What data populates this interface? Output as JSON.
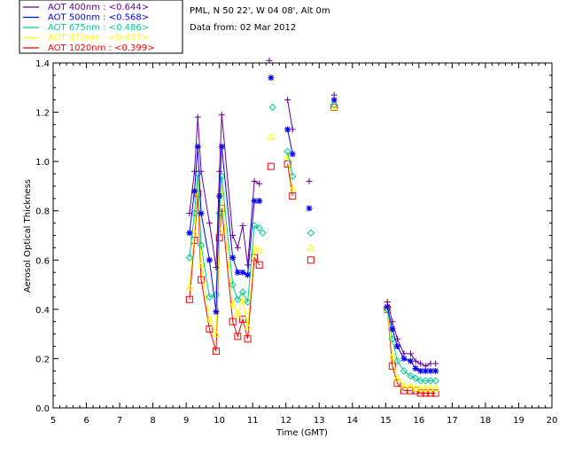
{
  "chart_data": {
    "type": "scatter",
    "header": {
      "station": "PML, N 50 22', W 04 08', Alt 0m",
      "date": "Data from: 02 Mar 2012"
    },
    "xlabel": "Time (GMT)",
    "ylabel": "Aerosol Optical Thickness",
    "xlim": [
      5,
      20
    ],
    "ylim": [
      0,
      1.4
    ],
    "xticks": [
      "5",
      "6",
      "7",
      "8",
      "9",
      "10",
      "11",
      "12",
      "13",
      "14",
      "15",
      "16",
      "17",
      "18",
      "19",
      "20"
    ],
    "yticks": [
      "0.0",
      "0.2",
      "0.4",
      "0.6",
      "0.8",
      "1.0",
      "1.2",
      "1.4"
    ],
    "series": [
      {
        "name": "AOT 400nm",
        "legend": "AOT  400nm : <0.644>",
        "color": "#660099",
        "marker": "plus",
        "segments": [
          [
            [
              9.1,
              0.79
            ],
            [
              9.25,
              0.96
            ],
            [
              9.35,
              1.18
            ],
            [
              9.45,
              0.96
            ],
            [
              9.7,
              0.75
            ],
            [
              9.9,
              0.57
            ],
            [
              10.0,
              0.96
            ],
            [
              10.07,
              1.19
            ],
            [
              10.4,
              0.7
            ],
            [
              10.55,
              0.65
            ],
            [
              10.7,
              0.74
            ],
            [
              10.85,
              0.58
            ],
            [
              11.05,
              0.92
            ],
            [
              11.2,
              0.91
            ]
          ],
          [
            [
              12.05,
              1.25
            ],
            [
              12.2,
              1.13
            ]
          ],
          [
            [
              15.05,
              0.43
            ],
            [
              15.2,
              0.35
            ],
            [
              15.35,
              0.28
            ],
            [
              15.55,
              0.22
            ],
            [
              15.75,
              0.22
            ],
            [
              15.9,
              0.19
            ],
            [
              16.05,
              0.18
            ],
            [
              16.2,
              0.17
            ],
            [
              16.35,
              0.18
            ],
            [
              16.5,
              0.18
            ]
          ]
        ],
        "isolated": [
          [
            11.5,
            1.41
          ],
          [
            12.7,
            0.92
          ],
          [
            13.45,
            1.27
          ]
        ]
      },
      {
        "name": "AOT 500nm",
        "legend": "AOT  500nm : <0.568>",
        "color": "#0000ff",
        "marker": "star",
        "segments": [
          [
            [
              9.1,
              0.71
            ],
            [
              9.25,
              0.88
            ],
            [
              9.35,
              1.06
            ],
            [
              9.45,
              0.79
            ],
            [
              9.7,
              0.6
            ],
            [
              9.9,
              0.39
            ],
            [
              10.0,
              0.86
            ],
            [
              10.07,
              1.06
            ],
            [
              10.4,
              0.61
            ],
            [
              10.55,
              0.55
            ],
            [
              10.7,
              0.55
            ],
            [
              10.85,
              0.54
            ],
            [
              11.05,
              0.84
            ],
            [
              11.2,
              0.84
            ]
          ],
          [
            [
              12.05,
              1.13
            ],
            [
              12.2,
              1.03
            ]
          ],
          [
            [
              15.05,
              0.41
            ],
            [
              15.2,
              0.32
            ],
            [
              15.35,
              0.25
            ],
            [
              15.55,
              0.2
            ],
            [
              15.75,
              0.19
            ],
            [
              15.9,
              0.16
            ],
            [
              16.05,
              0.15
            ],
            [
              16.2,
              0.15
            ],
            [
              16.35,
              0.15
            ],
            [
              16.5,
              0.15
            ]
          ]
        ],
        "isolated": [
          [
            11.55,
            1.34
          ],
          [
            12.7,
            0.81
          ],
          [
            13.45,
            1.25
          ]
        ]
      },
      {
        "name": "AOT 675nm",
        "legend": "AOT  675nm : <0.486>",
        "color": "#00cc99",
        "marker": "diamond",
        "segments": [
          [
            [
              9.1,
              0.61
            ],
            [
              9.25,
              0.79
            ],
            [
              9.35,
              0.95
            ],
            [
              9.45,
              0.66
            ],
            [
              9.7,
              0.45
            ],
            [
              9.9,
              0.46
            ],
            [
              10.0,
              0.79
            ],
            [
              10.07,
              0.94
            ],
            [
              10.4,
              0.5
            ],
            [
              10.55,
              0.44
            ],
            [
              10.7,
              0.47
            ],
            [
              10.85,
              0.43
            ],
            [
              11.05,
              0.74
            ],
            [
              11.2,
              0.73
            ]
          ],
          [
            [
              12.05,
              1.04
            ],
            [
              12.2,
              0.94
            ]
          ],
          [
            [
              15.05,
              0.4
            ],
            [
              15.2,
              0.28
            ],
            [
              15.35,
              0.19
            ],
            [
              15.55,
              0.15
            ],
            [
              15.75,
              0.13
            ],
            [
              15.9,
              0.12
            ],
            [
              16.05,
              0.11
            ],
            [
              16.2,
              0.11
            ],
            [
              16.35,
              0.11
            ],
            [
              16.5,
              0.11
            ]
          ]
        ],
        "isolated": [
          [
            11.3,
            0.71
          ],
          [
            11.6,
            1.22
          ],
          [
            12.75,
            0.71
          ],
          [
            13.45,
            1.23
          ]
        ]
      },
      {
        "name": "AOT 870nm",
        "legend": "AOT  870nm : <0.437>",
        "color": "#ffff00",
        "marker": "triangle",
        "segments": [
          [
            [
              9.1,
              0.49
            ],
            [
              9.25,
              0.71
            ],
            [
              9.35,
              0.92
            ],
            [
              9.45,
              0.58
            ],
            [
              9.7,
              0.36
            ],
            [
              9.9,
              0.3
            ],
            [
              10.0,
              0.72
            ],
            [
              10.07,
              0.88
            ],
            [
              10.4,
              0.42
            ],
            [
              10.55,
              0.38
            ],
            [
              10.7,
              0.44
            ],
            [
              10.85,
              0.33
            ],
            [
              11.05,
              0.65
            ],
            [
              11.2,
              0.64
            ]
          ],
          [
            [
              12.05,
              1.02
            ],
            [
              12.2,
              0.89
            ]
          ],
          [
            [
              15.05,
              0.4
            ],
            [
              15.2,
              0.21
            ],
            [
              15.35,
              0.12
            ],
            [
              15.55,
              0.09
            ],
            [
              15.75,
              0.09
            ],
            [
              15.9,
              0.08
            ],
            [
              16.05,
              0.08
            ],
            [
              16.2,
              0.08
            ],
            [
              16.35,
              0.08
            ],
            [
              16.5,
              0.08
            ]
          ]
        ],
        "isolated": [
          [
            11.55,
            1.1
          ],
          [
            12.75,
            0.65
          ],
          [
            13.45,
            1.22
          ]
        ]
      },
      {
        "name": "AOT 1020nm",
        "legend": "AOT 1020nm : <0.399>",
        "color": "#ff0000",
        "marker": "square",
        "segments": [
          [
            [
              9.1,
              0.44
            ],
            [
              9.25,
              0.68
            ],
            [
              9.35,
              0.87
            ],
            [
              9.45,
              0.52
            ],
            [
              9.7,
              0.32
            ],
            [
              9.9,
              0.23
            ],
            [
              10.0,
              0.69
            ],
            [
              10.07,
              0.81
            ],
            [
              10.4,
              0.35
            ],
            [
              10.55,
              0.29
            ],
            [
              10.7,
              0.36
            ],
            [
              10.85,
              0.28
            ],
            [
              11.05,
              0.61
            ],
            [
              11.2,
              0.58
            ]
          ],
          [
            [
              12.05,
              0.99
            ],
            [
              12.2,
              0.86
            ]
          ],
          [
            [
              15.05,
              0.4
            ],
            [
              15.2,
              0.17
            ],
            [
              15.35,
              0.1
            ],
            [
              15.55,
              0.07
            ],
            [
              15.75,
              0.07
            ],
            [
              15.9,
              0.07
            ],
            [
              16.05,
              0.06
            ],
            [
              16.2,
              0.06
            ],
            [
              16.35,
              0.06
            ],
            [
              16.5,
              0.06
            ]
          ]
        ],
        "isolated": [
          [
            11.55,
            0.98
          ],
          [
            12.75,
            0.6
          ],
          [
            13.45,
            1.22
          ]
        ]
      }
    ]
  }
}
